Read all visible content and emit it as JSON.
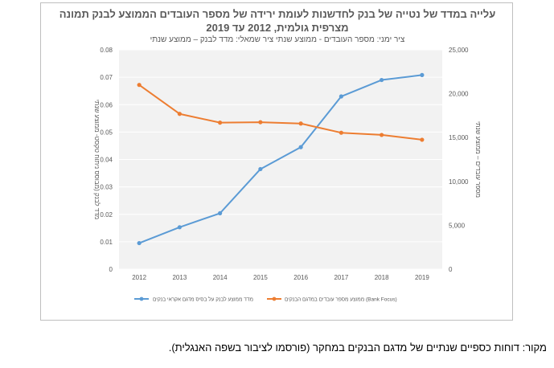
{
  "chart_data": {
    "type": "line",
    "title_line1": "עלייה במדד של נטייה של בנק לחדשנות לעומת ירידה של מספר העובדים הממוצע לבנק תמונה",
    "title_line2": "מצרפית גולמית, 2012 עד 2019",
    "subtitle": "ציר ימני: מספר העובדים - ממוצע שנתי ציר שמאלי: מדד לבנק – ממוצע שנתי",
    "categories": [
      "2012",
      "2013",
      "2014",
      "2015",
      "2016",
      "2017",
      "2018",
      "2019"
    ],
    "left_axis": {
      "label": "מדד לבנק (מבוסס ניתוח טקסט- ממוצע שנתי",
      "ylim": [
        0,
        0.08
      ],
      "ticks": [
        "0",
        "0.01",
        "0.02",
        "0.03",
        "0.04",
        "0.05",
        "0.06",
        "0.07",
        "0.08"
      ]
    },
    "right_axis": {
      "label": "מספר עובדים – ממוצע שנתי",
      "ylim": [
        0,
        25000
      ],
      "ticks": [
        "0",
        "5,000",
        "10,000",
        "15,000",
        "20,000",
        "25,000"
      ]
    },
    "series": [
      {
        "name": "מדד ממוצע לבנק על בסיס מדגם אקראי בנקים",
        "axis": "left",
        "color": "#5b9bd5",
        "values": [
          0.0095,
          0.0153,
          0.0204,
          0.0365,
          0.0445,
          0.063,
          0.069,
          0.0708
        ]
      },
      {
        "name": "ממוצע מספר עובדים במדגם הבנקים (Bank Focus)",
        "axis": "right",
        "color": "#ed7d31",
        "values": [
          21000,
          17700,
          16700,
          16750,
          16600,
          15550,
          15300,
          14750
        ]
      }
    ]
  },
  "source": "מקור: דוחות כספיים שנתיים של מדגם הבנקים במחקר (פורסמו לציבור בשפה האנגלית)."
}
